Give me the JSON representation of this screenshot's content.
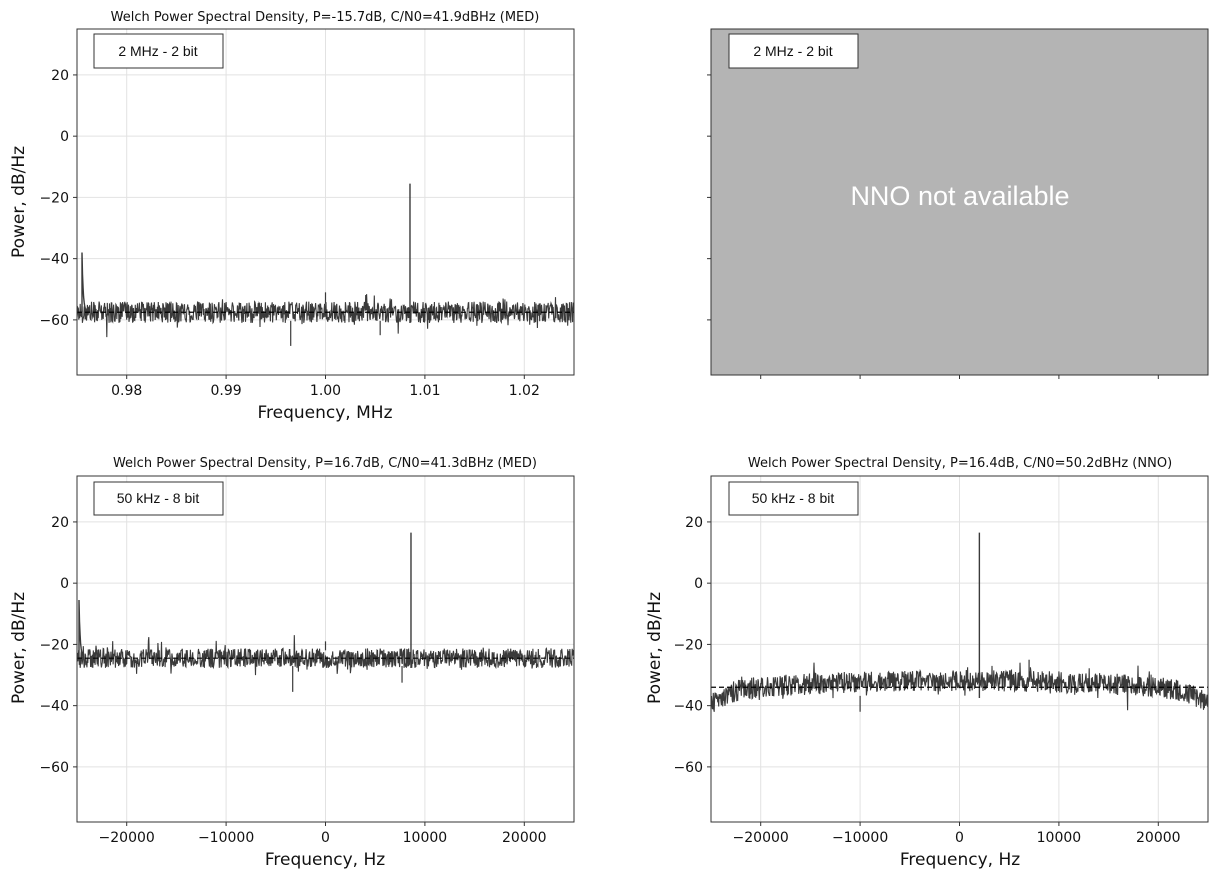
{
  "chart_data": [
    {
      "panel": "top-left",
      "type": "line",
      "title": "Welch Power Spectral Density, P=-15.7dB, C/N0=41.9dBHz (MED)",
      "xlabel": "Frequency, MHz",
      "ylabel": "Power, dB/Hz",
      "xlim": [
        0.975,
        1.025
      ],
      "ylim": [
        -78,
        35
      ],
      "xticks": [
        0.98,
        0.99,
        1.0,
        1.01,
        1.02
      ],
      "xtick_labels": [
        "0.98",
        "0.99",
        "1.00",
        "1.01",
        "1.02"
      ],
      "yticks": [
        20,
        0,
        -20,
        -40,
        -60
      ],
      "ytick_labels": [
        "20",
        "0",
        "−20",
        "−40",
        "−60"
      ],
      "grid": true,
      "legend": {
        "label": "2 MHz - 2 bit",
        "position": "top-left"
      },
      "series": [
        {
          "noise_floor": -57.5,
          "noise_spread": 3.5,
          "edge_peak": {
            "x": 0.9755,
            "y": -38
          },
          "spike": {
            "x": 1.0085,
            "y": -15.5
          },
          "dips": [
            {
              "x": 0.9965,
              "y": -68.5
            },
            {
              "x": 1.0055,
              "y": -65
            }
          ],
          "bumps": [
            {
              "x": 1.0,
              "y": -51
            }
          ]
        }
      ],
      "reference_line": {
        "y": -57.5,
        "style": "dashed"
      }
    },
    {
      "panel": "top-right",
      "type": "line",
      "placeholder": true,
      "title": "",
      "legend": {
        "label": "2 MHz - 2 bit",
        "position": "top-left"
      },
      "message": "NNO not available",
      "ylim": [
        -78,
        35
      ],
      "yticks": [
        20,
        0,
        -20,
        -40,
        -60
      ]
    },
    {
      "panel": "bottom-left",
      "type": "line",
      "title": "Welch Power Spectral Density, P=16.7dB, C/N0=41.3dBHz (MED)",
      "xlabel": "Frequency, Hz",
      "ylabel": "Power, dB/Hz",
      "xlim": [
        -25000,
        25000
      ],
      "ylim": [
        -78,
        35
      ],
      "xticks": [
        -20000,
        -10000,
        0,
        10000,
        20000
      ],
      "xtick_labels": [
        "−20000",
        "−10000",
        "0",
        "10000",
        "20000"
      ],
      "yticks": [
        20,
        0,
        -20,
        -40,
        -60
      ],
      "ytick_labels": [
        "20",
        "0",
        "−20",
        "−40",
        "−60"
      ],
      "grid": true,
      "legend": {
        "label": "50 kHz - 8 bit",
        "position": "top-left"
      },
      "series": [
        {
          "noise_floor": -24.5,
          "noise_spread": 3.2,
          "edge_peak": {
            "x": -24800,
            "y": -5.5
          },
          "spike": {
            "x": 8600,
            "y": 16.5
          },
          "dips": [
            {
              "x": -3300,
              "y": -35.5
            },
            {
              "x": 7700,
              "y": -32.5
            }
          ],
          "bumps": [
            {
              "x": 0,
              "y": -19
            }
          ]
        }
      ],
      "reference_line": {
        "y": -24.5,
        "style": "dashed"
      }
    },
    {
      "panel": "bottom-right",
      "type": "line",
      "title": "Welch Power Spectral Density, P=16.4dB, C/N0=50.2dBHz (NNO)",
      "xlabel": "Frequency, Hz",
      "ylabel": "Power, dB/Hz",
      "xlim": [
        -25000,
        25000
      ],
      "ylim": [
        -78,
        35
      ],
      "xticks": [
        -20000,
        -10000,
        0,
        10000,
        20000
      ],
      "xtick_labels": [
        "−20000",
        "−10000",
        "0",
        "10000",
        "20000"
      ],
      "yticks": [
        20,
        0,
        -20,
        -40,
        -60
      ],
      "ytick_labels": [
        "20",
        "0",
        "−20",
        "−40",
        "−60"
      ],
      "grid": true,
      "legend": {
        "label": "50 kHz - 8 bit",
        "position": "top-left"
      },
      "series": [
        {
          "noise_floor": -34,
          "noise_spread": 3.5,
          "shape": "rolloff",
          "spike": {
            "x": 2000,
            "y": 16.5
          },
          "dips": [
            {
              "x": -10000,
              "y": -42
            }
          ],
          "bumps": [
            {
              "x": 7000,
              "y": -25
            }
          ]
        }
      ],
      "reference_line": {
        "y": -34,
        "style": "dashed"
      }
    }
  ],
  "colors": {
    "trace": "#3a3a3a",
    "grid": "#e2e2e2",
    "placeholder_fill": "#b4b4b4"
  }
}
